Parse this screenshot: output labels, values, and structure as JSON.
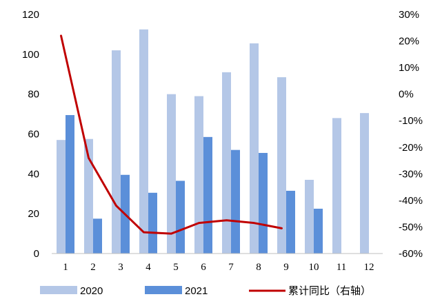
{
  "chart_data": {
    "type": "bar",
    "categories": [
      "1",
      "2",
      "3",
      "4",
      "5",
      "6",
      "7",
      "8",
      "9",
      "10",
      "11",
      "12"
    ],
    "series": [
      {
        "name": "2020",
        "type": "bar",
        "axis": "left",
        "color": "#b4c7e7",
        "values": [
          57,
          57.5,
          102,
          112.5,
          80,
          79,
          91,
          105.5,
          88.5,
          37,
          68,
          70.5
        ]
      },
      {
        "name": "2021",
        "type": "bar",
        "axis": "left",
        "color": "#5b8fd9",
        "values": [
          69.5,
          17.5,
          39.5,
          30.5,
          36.5,
          58.5,
          52,
          50.5,
          31.5,
          22.5,
          null,
          null
        ]
      },
      {
        "name": "累计同比（右轴）",
        "type": "line",
        "axis": "right",
        "color": "#c00000",
        "values": [
          22,
          -24,
          -42,
          -52,
          -52.5,
          -48.5,
          -47.5,
          -48.5,
          -50.5,
          null,
          null,
          null
        ]
      }
    ],
    "y_left": {
      "ylim": [
        0,
        120
      ],
      "ticks": [
        0,
        20,
        40,
        60,
        80,
        100,
        120
      ]
    },
    "y_right": {
      "ylim": [
        -60,
        30
      ],
      "ticks": [
        "30%",
        "20%",
        "10%",
        "0%",
        "-10%",
        "-20%",
        "-30%",
        "-40%",
        "-50%",
        "-60%"
      ]
    },
    "legend": {
      "position": "bottom"
    },
    "grid": false
  }
}
